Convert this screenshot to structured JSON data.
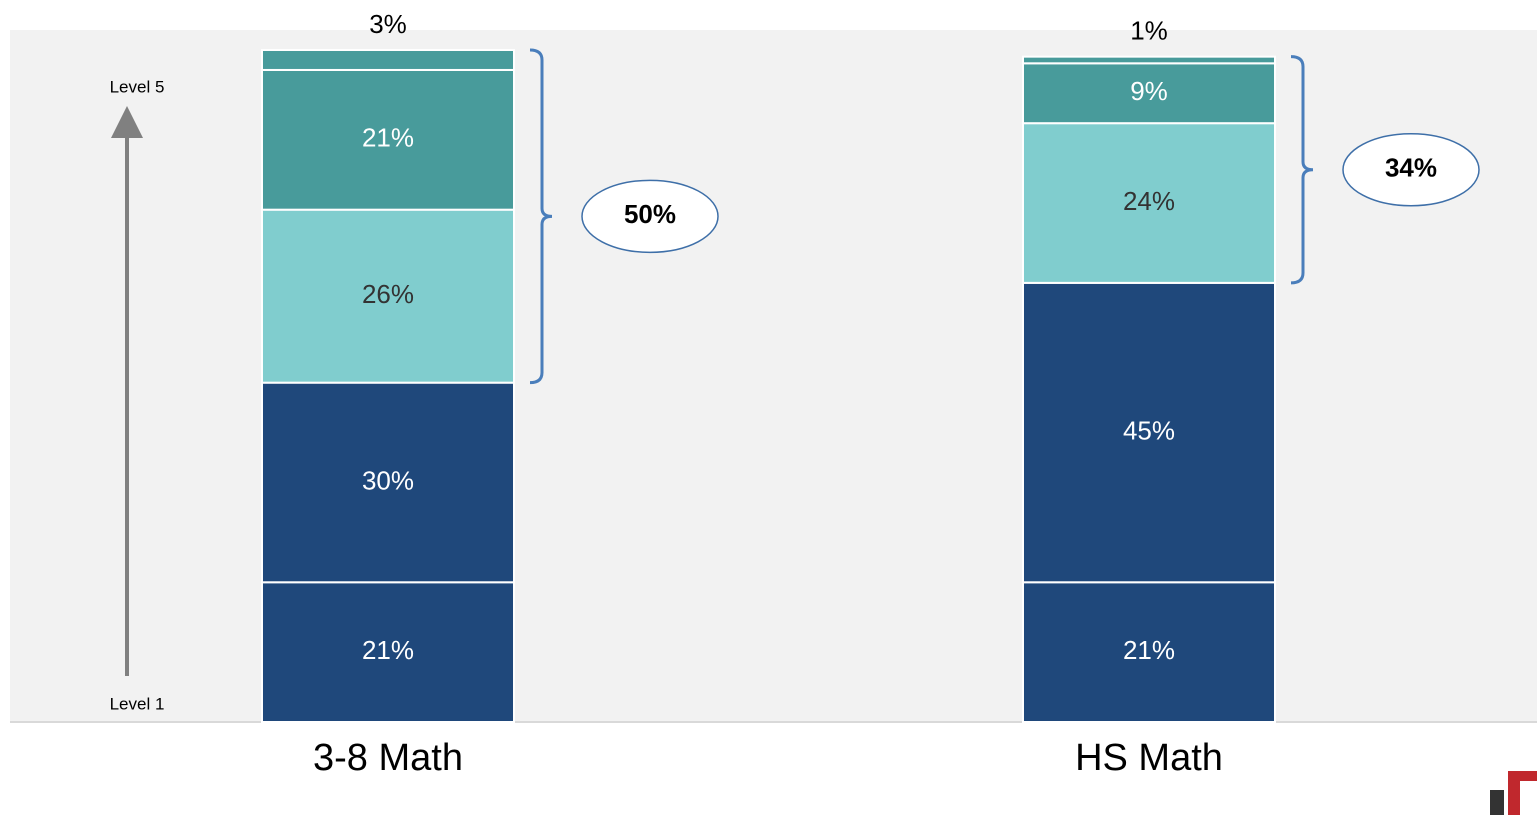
{
  "chart_data": {
    "type": "stacked-bar",
    "categories": [
      "3-8 Math",
      "HS Math"
    ],
    "series": [
      {
        "color": "#1f487b",
        "values": [
          21,
          21
        ],
        "value_labels": [
          "21%",
          "21%"
        ]
      },
      {
        "color": "#1f487b",
        "values": [
          30,
          45
        ],
        "value_labels": [
          "30%",
          "45%"
        ]
      },
      {
        "color": "#80cdce",
        "values": [
          26,
          24
        ],
        "value_labels": [
          "26%",
          "24%"
        ]
      },
      {
        "color": "#489b9b",
        "values": [
          21,
          9
        ],
        "value_labels": [
          "21%",
          "9%"
        ]
      },
      {
        "color": "#489b9b",
        "values": [
          3,
          1
        ],
        "value_labels": [
          "3%",
          "1%"
        ]
      }
    ],
    "axis_top_label": "Level 5",
    "axis_bottom_label": "Level 1",
    "annotations": [
      "50%",
      "34%"
    ]
  }
}
